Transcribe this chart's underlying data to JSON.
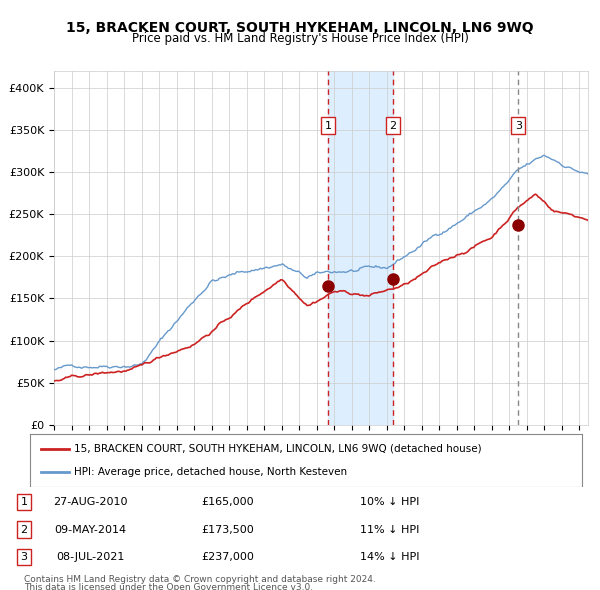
{
  "title": "15, BRACKEN COURT, SOUTH HYKEHAM, LINCOLN, LN6 9WQ",
  "subtitle": "Price paid vs. HM Land Registry's House Price Index (HPI)",
  "xlabel": "",
  "ylabel": "",
  "xlim": [
    1995.0,
    2025.5
  ],
  "ylim": [
    0,
    420000
  ],
  "yticks": [
    0,
    50000,
    100000,
    150000,
    200000,
    250000,
    300000,
    350000,
    400000
  ],
  "ytick_labels": [
    "£0",
    "£50K",
    "£100K",
    "£150K",
    "£200K",
    "£250K",
    "£300K",
    "£350K",
    "£400K"
  ],
  "xticks": [
    1995,
    1996,
    1997,
    1998,
    1999,
    2000,
    2001,
    2002,
    2003,
    2004,
    2005,
    2006,
    2007,
    2008,
    2009,
    2010,
    2011,
    2012,
    2013,
    2014,
    2015,
    2016,
    2017,
    2018,
    2019,
    2020,
    2021,
    2022,
    2023,
    2024,
    2025
  ],
  "background_color": "#ffffff",
  "plot_bg_color": "#ffffff",
  "grid_color": "#cccccc",
  "hpi_line_color": "#6699cc",
  "price_line_color": "#cc2222",
  "sale_marker_color": "#8b0000",
  "vline1_color": "#cc2222",
  "vline2_color": "#cc2222",
  "vline3_color": "#888888",
  "shade_color": "#ddeeff",
  "sale1": {
    "year": 2010.657,
    "price": 165000,
    "label": "1"
  },
  "sale2": {
    "year": 2014.354,
    "price": 173500,
    "label": "2"
  },
  "sale3": {
    "year": 2021.519,
    "price": 237000,
    "label": "3"
  },
  "legend_price_label": "15, BRACKEN COURT, SOUTH HYKEHAM, LINCOLN, LN6 9WQ (detached house)",
  "legend_hpi_label": "HPI: Average price, detached house, North Kesteven",
  "table": [
    {
      "num": "1",
      "date": "27-AUG-2010",
      "price": "£165,000",
      "note": "10% ↓ HPI"
    },
    {
      "num": "2",
      "date": "09-MAY-2014",
      "price": "£173,500",
      "note": "11% ↓ HPI"
    },
    {
      "num": "3",
      "date": "08-JUL-2021",
      "price": "£237,000",
      "note": "14% ↓ HPI"
    }
  ],
  "footnote1": "Contains HM Land Registry data © Crown copyright and database right 2024.",
  "footnote2": "This data is licensed under the Open Government Licence v3.0."
}
